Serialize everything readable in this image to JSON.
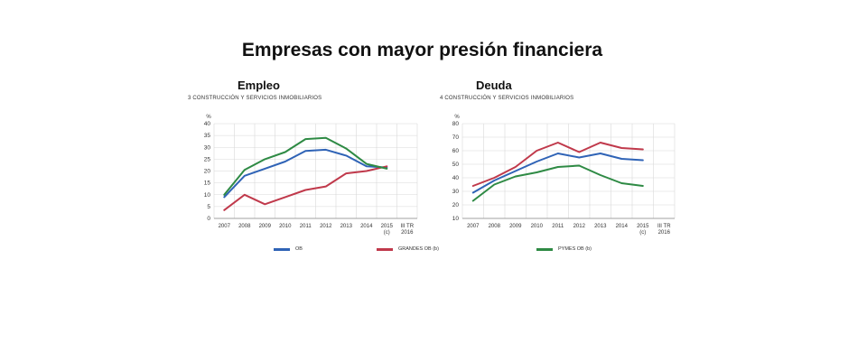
{
  "main_title": "Empresas con mayor presión financiera",
  "colors": {
    "ob": "#2f63b6",
    "grandes": "#c0394b",
    "pymes": "#2e8a44",
    "grid": "#d8d8d8"
  },
  "legend": [
    {
      "key": "ob",
      "label": "OB"
    },
    {
      "key": "grandes",
      "label": "GRANDES OB (b)"
    },
    {
      "key": "pymes",
      "label": "PYMES OB (b)"
    }
  ],
  "chart_data": [
    {
      "type": "line",
      "title": "Empleo",
      "subtitle": "3  CONSTRUCCIÓN Y SERVICIOS INMOBILIARIOS",
      "unit": "%",
      "categories": [
        "2007",
        "2008",
        "2009",
        "2010",
        "2011",
        "2012",
        "2013",
        "2014",
        "2015\n(c)",
        "III TR\n2016"
      ],
      "ylim": [
        0,
        40
      ],
      "yticks": [
        0,
        5,
        10,
        15,
        20,
        25,
        30,
        35,
        40
      ],
      "grid": true,
      "series": [
        {
          "name": "OB",
          "color_key": "ob",
          "values": [
            9,
            18,
            21,
            24,
            28.5,
            29,
            26.5,
            22,
            21.5,
            null
          ]
        },
        {
          "name": "GRANDES OB (b)",
          "color_key": "grandes",
          "values": [
            3.5,
            10,
            6,
            9,
            12,
            13.5,
            19,
            20,
            22,
            null
          ]
        },
        {
          "name": "PYMES OB (b)",
          "color_key": "pymes",
          "values": [
            10,
            20.5,
            25,
            28,
            33.5,
            34,
            29.5,
            23,
            21,
            null
          ]
        }
      ]
    },
    {
      "type": "line",
      "title": "Deuda",
      "subtitle": "4  CONSTRUCCIÓN Y SERVICIOS INMOBILIARIOS",
      "unit": "%",
      "categories": [
        "2007",
        "2008",
        "2009",
        "2010",
        "2011",
        "2012",
        "2013",
        "2014",
        "2015\n(c)",
        "III TR\n2016"
      ],
      "ylim": [
        10,
        80
      ],
      "yticks": [
        10,
        20,
        30,
        40,
        50,
        60,
        70,
        80
      ],
      "grid": true,
      "series": [
        {
          "name": "OB",
          "color_key": "ob",
          "values": [
            29,
            38,
            45,
            52,
            58,
            55,
            58,
            54,
            53,
            null
          ]
        },
        {
          "name": "GRANDES OB (b)",
          "color_key": "grandes",
          "values": [
            34,
            40,
            48,
            60,
            66,
            59,
            66,
            62,
            61,
            null
          ]
        },
        {
          "name": "PYMES OB (b)",
          "color_key": "pymes",
          "values": [
            23,
            35,
            41,
            44,
            48,
            49,
            42,
            36,
            34,
            null
          ]
        }
      ]
    }
  ]
}
